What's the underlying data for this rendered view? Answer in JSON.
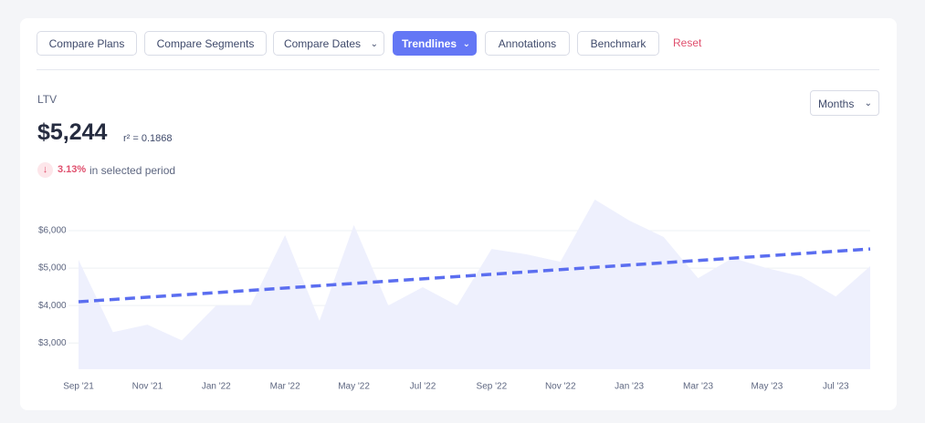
{
  "toolbar": {
    "buttons": [
      "Compare Plans",
      "Compare Segments",
      "Compare Dates",
      "Trendlines",
      "Annotations",
      "Benchmark"
    ],
    "reset": "Reset"
  },
  "metric": {
    "label": "LTV",
    "value": "$5,244",
    "r_squared": "r² = 0.1868",
    "change": "3.13%",
    "change_text": "in selected period",
    "period_select": "Months"
  },
  "chart_data": {
    "type": "area",
    "categories": [
      "Sep '21",
      null,
      "Nov '21",
      null,
      "Jan '22",
      null,
      "Mar '22",
      null,
      "May '22",
      null,
      "Jul '22",
      null,
      "Sep '22",
      null,
      "Nov '22",
      null,
      "Jan '23",
      null,
      "Mar '23",
      null,
      "May '23",
      null,
      "Jul '23",
      null
    ],
    "values": [
      5220,
      3290,
      3490,
      3070,
      4000,
      4000,
      5880,
      3590,
      6150,
      4000,
      4490,
      4000,
      5510,
      5370,
      5170,
      6830,
      6270,
      5830,
      4730,
      5270,
      5000,
      4780,
      4240,
      5050
    ],
    "color": "#eef0fd",
    "trend": {
      "start": 4100,
      "end": 5510,
      "color": "#5b6ef0"
    },
    "ylim": [
      2300,
      6900
    ],
    "yticks": [
      {
        "value": 3000,
        "label": "$3,000"
      },
      {
        "value": 4000,
        "label": "$4,000"
      },
      {
        "value": 5000,
        "label": "$5,000"
      },
      {
        "value": 6000,
        "label": "$6,000"
      }
    ],
    "grid": true
  }
}
